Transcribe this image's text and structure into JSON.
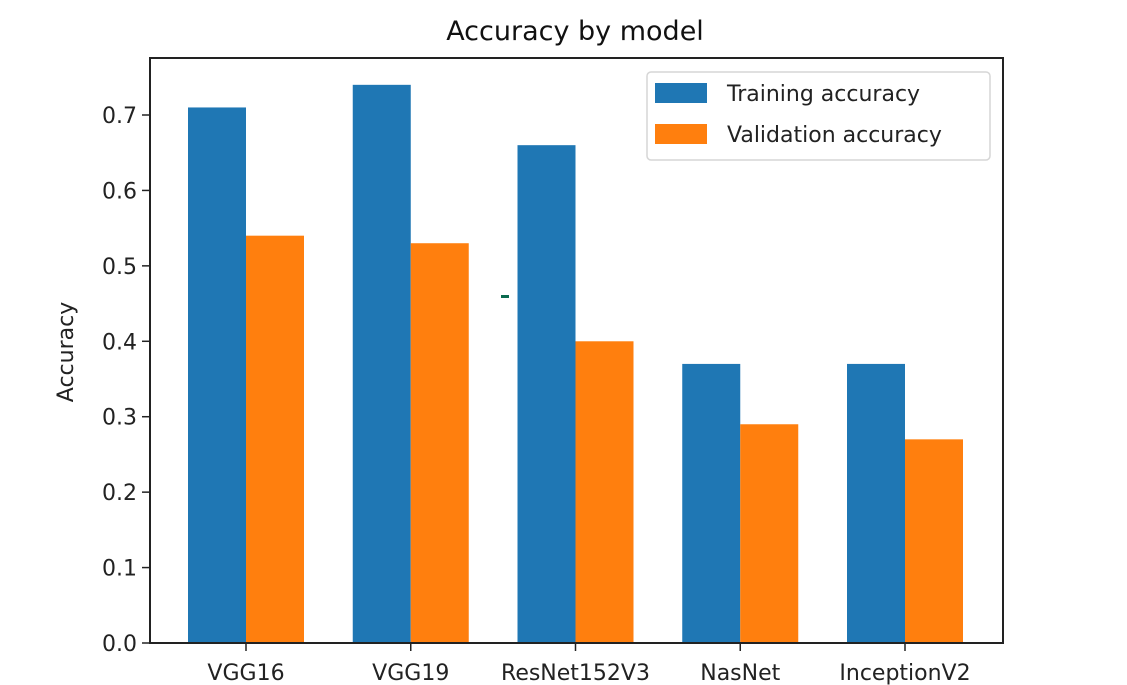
{
  "chart_data": {
    "type": "bar",
    "title": "Accuracy by model",
    "xlabel": "",
    "ylabel": "Accuracy",
    "categories": [
      "VGG16",
      "VGG19",
      "ResNet152V3",
      "NasNet",
      "InceptionV2"
    ],
    "series": [
      {
        "name": "Training accuracy",
        "color": "#1f77b4",
        "values": [
          0.71,
          0.74,
          0.66,
          0.37,
          0.37
        ]
      },
      {
        "name": "Validation accuracy",
        "color": "#ff7f0e",
        "values": [
          0.54,
          0.53,
          0.4,
          0.29,
          0.27
        ]
      }
    ],
    "ylim": [
      0.0,
      0.77
    ],
    "yticks": [
      0.0,
      0.1,
      0.2,
      0.3,
      0.4,
      0.5,
      0.6,
      0.7
    ],
    "ytick_labels": [
      "0.0",
      "0.1",
      "0.2",
      "0.3",
      "0.4",
      "0.5",
      "0.6",
      "0.7"
    ],
    "grid": false,
    "legend_position": "top-right"
  }
}
